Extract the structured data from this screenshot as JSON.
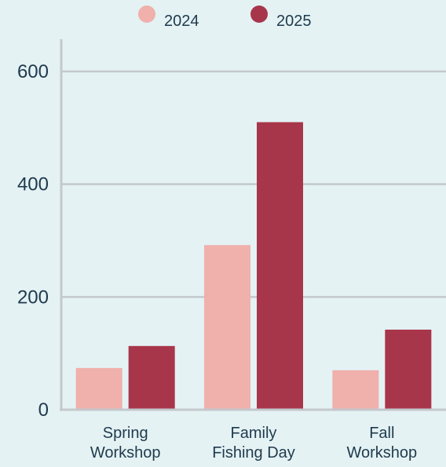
{
  "chart_data": {
    "type": "bar",
    "categories": [
      "Spring Workshop",
      "Family Fishing Day",
      "Fall Workshop"
    ],
    "series": [
      {
        "name": "2024",
        "color": "#f0b0ab",
        "values": [
          74,
          292,
          70
        ]
      },
      {
        "name": "2025",
        "color": "#a8364b",
        "values": [
          113,
          510,
          142
        ]
      }
    ],
    "ylim": [
      0,
      600
    ],
    "yticks": [
      0,
      200,
      400,
      600
    ],
    "grid": true
  }
}
